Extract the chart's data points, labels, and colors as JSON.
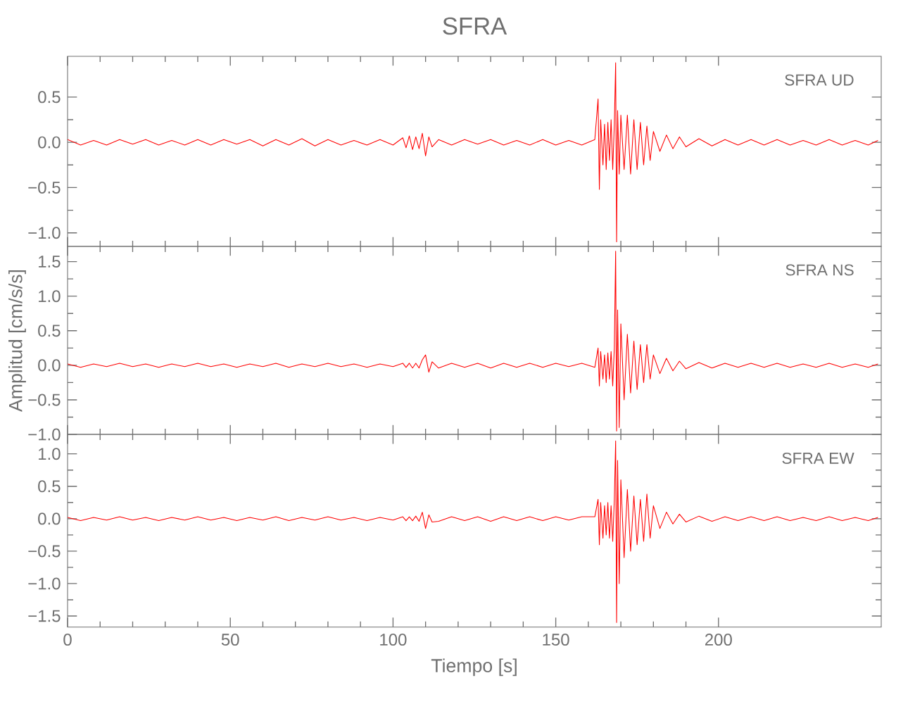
{
  "chart_data": [
    {
      "type": "line",
      "title": "SFRA",
      "annotations": [
        "SFRA   UD"
      ],
      "xlim": [
        0,
        250
      ],
      "xticks": [
        0,
        50,
        100,
        150,
        200
      ],
      "ylim": [
        -1.15,
        0.95
      ],
      "yticks": [
        {
          "value": -1.0,
          "label": "−1.0"
        },
        {
          "value": -0.5,
          "label": "−0.5"
        },
        {
          "value": 0,
          "label": "0.0"
        },
        {
          "value": 0.5,
          "label": "0.5"
        }
      ],
      "tick_labels": "y",
      "x": [
        0,
        4,
        8,
        12,
        16,
        20,
        24,
        28,
        32,
        36,
        40,
        44,
        48,
        52,
        56,
        60,
        64,
        68,
        72,
        76,
        80,
        84,
        88,
        92,
        96,
        100,
        103,
        104,
        105,
        106,
        107,
        108,
        109,
        110,
        111,
        112,
        114,
        118,
        122,
        126,
        130,
        134,
        138,
        142,
        146,
        150,
        154,
        158,
        162,
        163,
        163.4,
        163.8,
        164.5,
        165,
        165.5,
        166,
        166.5,
        167,
        167.5,
        168,
        168.4,
        168.7,
        169,
        169.5,
        170,
        171,
        172,
        173,
        174,
        175,
        176,
        177,
        178,
        179,
        180,
        182,
        184,
        186,
        188,
        190,
        194,
        198,
        202,
        206,
        210,
        214,
        218,
        222,
        226,
        230,
        234,
        238,
        242,
        246,
        249
      ],
      "series": [
        {
          "color": "#ff0000",
          "values": [
            0.03,
            -0.03,
            0.02,
            -0.03,
            0.03,
            -0.02,
            0.03,
            -0.03,
            0.02,
            -0.03,
            0.03,
            -0.03,
            0.03,
            -0.02,
            0.03,
            -0.04,
            0.03,
            -0.03,
            0.04,
            -0.04,
            0.03,
            -0.03,
            0.02,
            -0.03,
            0.03,
            -0.03,
            0.05,
            -0.06,
            0.07,
            -0.08,
            0.06,
            -0.07,
            0.1,
            -0.15,
            0.06,
            -0.05,
            0.03,
            -0.03,
            0.03,
            -0.02,
            0.03,
            -0.03,
            0.02,
            -0.03,
            0.03,
            -0.03,
            0.02,
            -0.03,
            0.03,
            0.48,
            -0.52,
            0.25,
            -0.25,
            0.2,
            -0.3,
            0.22,
            -0.2,
            0.25,
            -0.3,
            0.2,
            0.88,
            -1.1,
            0.35,
            -0.35,
            0.3,
            -0.3,
            0.3,
            -0.35,
            0.25,
            -0.3,
            0.22,
            -0.25,
            0.18,
            -0.2,
            0.12,
            -0.1,
            0.08,
            -0.07,
            0.06,
            -0.05,
            0.04,
            -0.04,
            0.03,
            -0.03,
            0.03,
            -0.03,
            0.03,
            -0.03,
            0.02,
            -0.03,
            0.03,
            -0.03,
            0.02,
            -0.03,
            0.02
          ]
        }
      ]
    },
    {
      "type": "line",
      "ylabel": "Amplitud [cm/s/s]",
      "annotations": [
        "SFRA   NS"
      ],
      "xlim": [
        0,
        250
      ],
      "xticks": [
        0,
        50,
        100,
        150,
        200
      ],
      "ylim": [
        -1.0,
        1.72
      ],
      "yticks": [
        {
          "value": -1.0,
          "label": "−1.0"
        },
        {
          "value": -0.5,
          "label": "−0.5"
        },
        {
          "value": 0,
          "label": "0.0"
        },
        {
          "value": 0.5,
          "label": "0.5"
        },
        {
          "value": 1.0,
          "label": "1.0"
        },
        {
          "value": 1.5,
          "label": "1.5"
        }
      ],
      "tick_labels": "y",
      "x": [
        0,
        4,
        8,
        12,
        16,
        20,
        24,
        28,
        32,
        36,
        40,
        44,
        48,
        52,
        56,
        60,
        64,
        68,
        72,
        76,
        80,
        84,
        88,
        92,
        96,
        100,
        103,
        104,
        105,
        106,
        107,
        108,
        109,
        110,
        111,
        112,
        114,
        118,
        122,
        126,
        130,
        134,
        138,
        142,
        146,
        150,
        154,
        158,
        162,
        163,
        163.4,
        163.8,
        164.5,
        165,
        165.5,
        166,
        166.5,
        167,
        167.5,
        168,
        168.4,
        168.7,
        169,
        169.5,
        170,
        171,
        172,
        173,
        174,
        175,
        176,
        177,
        178,
        179,
        180,
        182,
        184,
        186,
        188,
        190,
        194,
        198,
        202,
        206,
        210,
        214,
        218,
        222,
        226,
        230,
        234,
        238,
        242,
        246,
        249
      ],
      "series": [
        {
          "color": "#ff0000",
          "values": [
            0.02,
            -0.03,
            0.02,
            -0.02,
            0.03,
            -0.02,
            0.02,
            -0.03,
            0.02,
            -0.02,
            0.03,
            -0.02,
            0.02,
            -0.03,
            0.02,
            -0.02,
            0.03,
            -0.03,
            0.02,
            -0.02,
            0.03,
            -0.02,
            0.02,
            -0.03,
            0.02,
            -0.02,
            0.03,
            -0.03,
            0.03,
            -0.04,
            0.03,
            -0.04,
            0.08,
            0.15,
            -0.1,
            0.05,
            -0.04,
            0.03,
            -0.03,
            0.03,
            -0.04,
            0.03,
            -0.03,
            0.03,
            -0.03,
            0.03,
            -0.02,
            0.03,
            -0.03,
            0.25,
            -0.3,
            0.2,
            -0.2,
            0.15,
            -0.25,
            0.18,
            -0.2,
            0.2,
            -0.3,
            0.25,
            1.65,
            -0.95,
            0.8,
            -0.9,
            0.6,
            -0.5,
            0.45,
            -0.4,
            0.35,
            -0.35,
            0.3,
            -0.25,
            0.3,
            -0.2,
            0.15,
            -0.12,
            0.1,
            -0.08,
            0.06,
            -0.05,
            0.04,
            -0.04,
            0.03,
            -0.03,
            0.03,
            -0.03,
            0.03,
            -0.03,
            0.02,
            -0.03,
            0.03,
            -0.03,
            0.02,
            -0.03,
            0.02
          ]
        }
      ]
    },
    {
      "type": "line",
      "xlabel": "Tiempo [s]",
      "annotations": [
        "SFRA   EW"
      ],
      "xlim": [
        0,
        250
      ],
      "xticks": [
        0,
        50,
        100,
        150,
        200
      ],
      "ylim": [
        -1.67,
        1.3
      ],
      "yticks": [
        {
          "value": -1.5,
          "label": "−1.5"
        },
        {
          "value": -1.0,
          "label": "−1.0"
        },
        {
          "value": -0.5,
          "label": "−0.5"
        },
        {
          "value": 0,
          "label": "0.0"
        },
        {
          "value": 0.5,
          "label": "0.5"
        },
        {
          "value": 1.0,
          "label": "1.0"
        }
      ],
      "x": [
        0,
        4,
        8,
        12,
        16,
        20,
        24,
        28,
        32,
        36,
        40,
        44,
        48,
        52,
        56,
        60,
        64,
        68,
        72,
        76,
        80,
        84,
        88,
        92,
        96,
        100,
        103,
        104,
        105,
        106,
        107,
        108,
        109,
        110,
        111,
        112,
        114,
        118,
        122,
        126,
        130,
        134,
        138,
        142,
        146,
        150,
        154,
        158,
        162,
        163,
        163.4,
        163.8,
        164.5,
        165,
        165.5,
        166,
        166.5,
        167,
        167.5,
        168,
        168.4,
        168.7,
        169,
        169.5,
        170,
        171,
        172,
        173,
        174,
        175,
        176,
        177,
        178,
        179,
        180,
        182,
        184,
        186,
        188,
        190,
        194,
        198,
        202,
        206,
        210,
        214,
        218,
        222,
        226,
        230,
        234,
        238,
        242,
        246,
        249
      ],
      "series": [
        {
          "color": "#ff0000",
          "values": [
            0.02,
            -0.03,
            0.02,
            -0.02,
            0.03,
            -0.02,
            0.02,
            -0.03,
            0.02,
            -0.02,
            0.03,
            -0.02,
            0.02,
            -0.03,
            0.02,
            -0.02,
            0.03,
            -0.03,
            0.02,
            -0.02,
            0.03,
            -0.02,
            0.02,
            -0.03,
            0.02,
            -0.02,
            0.03,
            -0.03,
            0.03,
            -0.03,
            0.04,
            -0.04,
            0.1,
            -0.15,
            0.06,
            -0.05,
            -0.04,
            0.03,
            -0.03,
            0.03,
            -0.04,
            0.03,
            -0.03,
            0.03,
            -0.03,
            0.03,
            -0.02,
            0.03,
            0.03,
            0.3,
            -0.4,
            0.25,
            -0.3,
            0.2,
            -0.25,
            0.25,
            -0.3,
            0.2,
            -0.35,
            0.3,
            1.2,
            -1.6,
            0.9,
            -1.0,
            0.6,
            -0.6,
            0.45,
            -0.5,
            0.35,
            -0.4,
            0.3,
            -0.35,
            0.38,
            -0.3,
            0.2,
            -0.15,
            0.1,
            -0.08,
            0.07,
            -0.05,
            0.04,
            -0.04,
            0.03,
            -0.03,
            0.03,
            -0.03,
            0.03,
            -0.03,
            0.02,
            -0.03,
            0.03,
            -0.03,
            0.02,
            -0.03,
            0.02
          ]
        }
      ]
    }
  ]
}
